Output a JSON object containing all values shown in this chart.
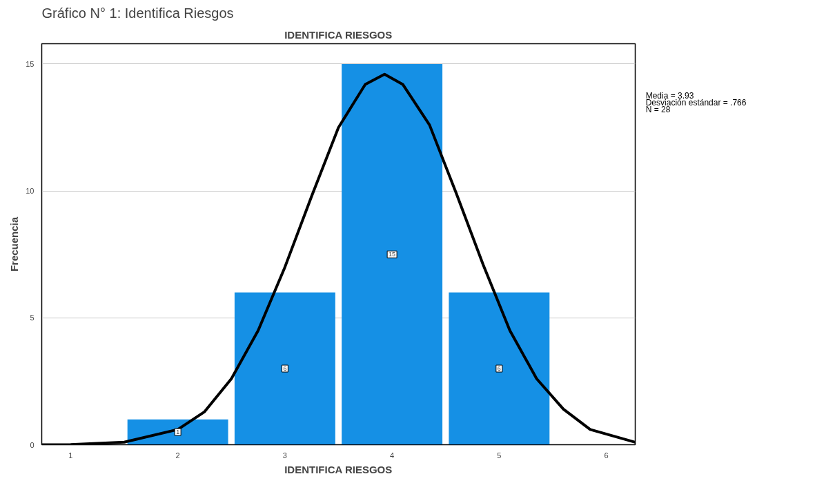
{
  "chart_data": {
    "type": "histogram",
    "title": "IDENTIFICA RIESGOS",
    "xlabel": "IDENTIFICA RIESGOS",
    "ylabel": "Frecuencia",
    "bins": [
      1.5,
      2.5,
      3.5,
      4.5,
      5.5
    ],
    "values": [
      1,
      6,
      15,
      6
    ],
    "color": "#1590e5",
    "value_labels": [
      "1",
      "6",
      "15",
      "6"
    ],
    "series": [
      {
        "type": "line",
        "color": "#000000",
        "x": [
          0.73,
          1,
          1.5,
          2,
          2.25,
          2.5,
          2.75,
          3,
          3.25,
          3.5,
          3.75,
          3.93,
          4.1,
          4.35,
          4.6,
          4.85,
          5.1,
          5.35,
          5.6,
          5.85,
          6.1,
          6.27
        ],
        "values": [
          0,
          0.01,
          0.1,
          0.6,
          1.3,
          2.6,
          4.5,
          7,
          9.8,
          12.5,
          14.2,
          14.6,
          14.2,
          12.6,
          9.9,
          7.1,
          4.5,
          2.6,
          1.4,
          0.6,
          0.3,
          0.1
        ]
      }
    ],
    "xlim": [
      0.73,
      6.27
    ],
    "ylim": [
      0,
      15.8
    ],
    "xticks": [
      1,
      2,
      3,
      4,
      5,
      6
    ],
    "yticks": [
      0,
      5,
      10,
      15
    ],
    "grid": "y",
    "line_style": "solid",
    "annotations": [
      "Gráfico N° 1: Identifica Riesgos",
      "Media = 3.93",
      "Desviación estándar = .766",
      "N = 28"
    ]
  }
}
